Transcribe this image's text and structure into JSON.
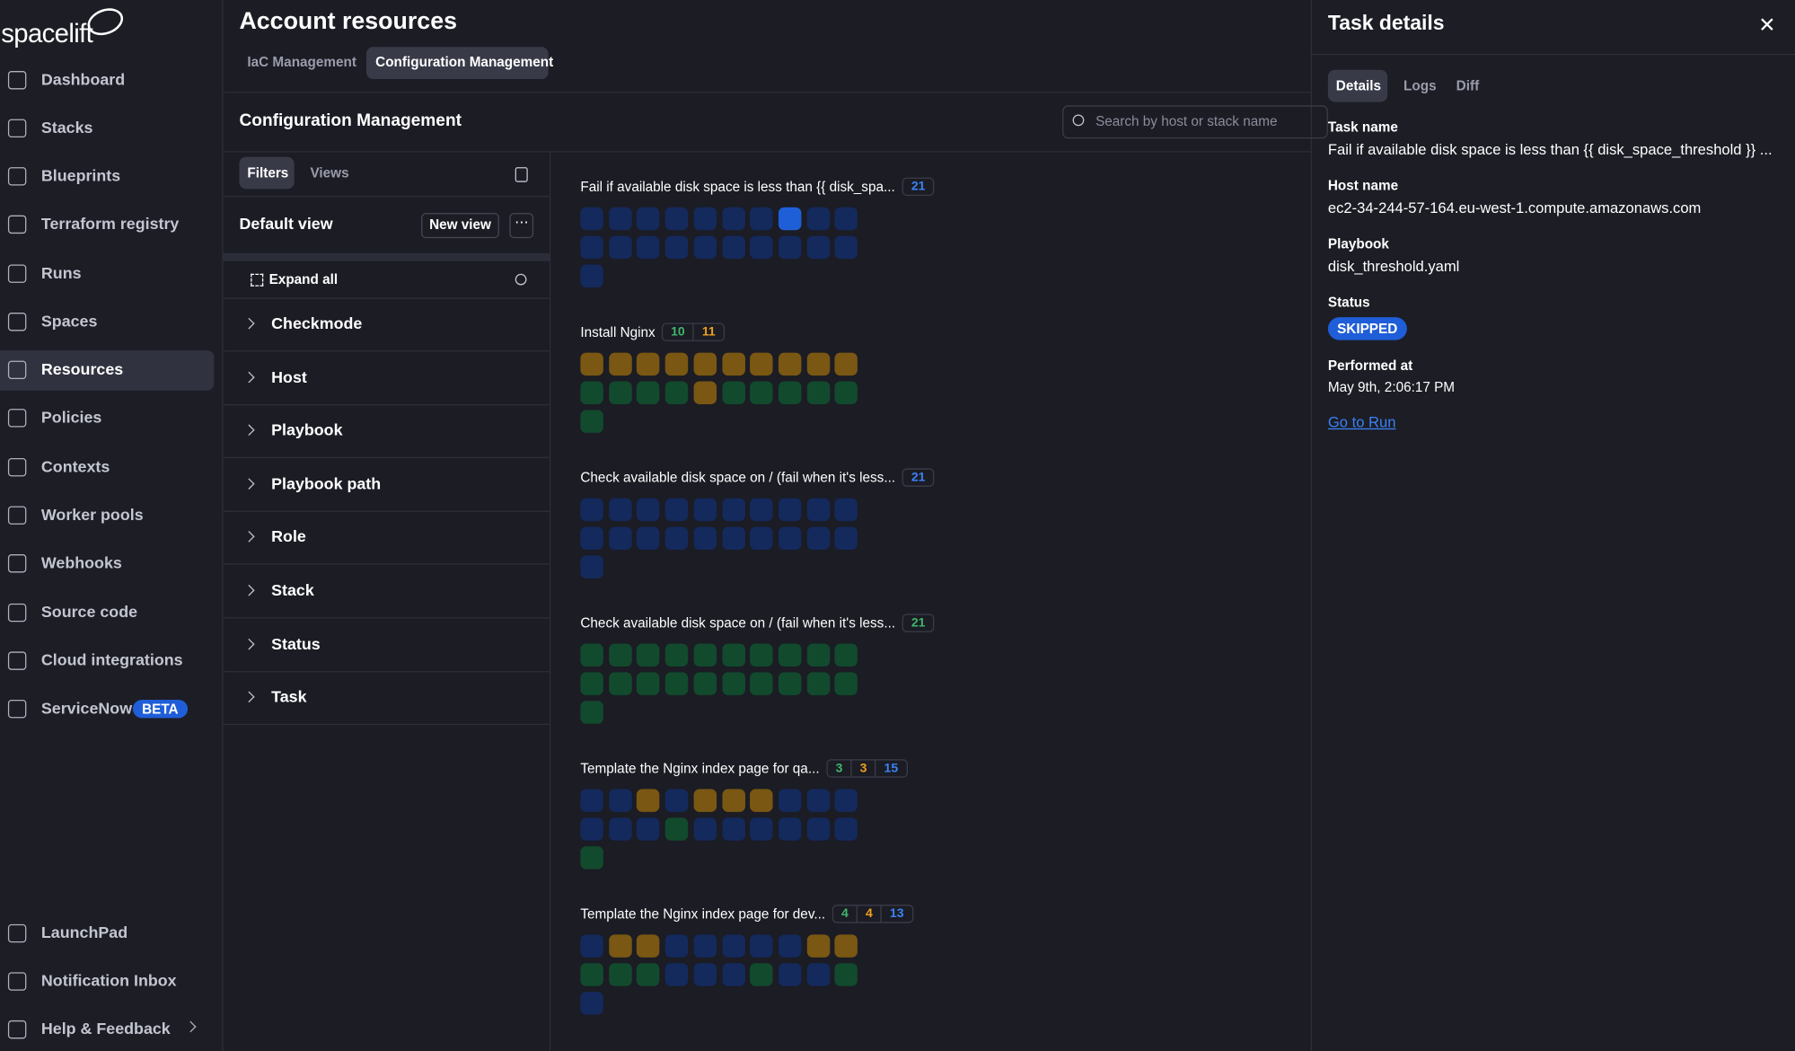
{
  "sidebar": {
    "logo": "spacelift",
    "nav": [
      "Dashboard",
      "Stacks",
      "Blueprints",
      "Terraform registry",
      "Runs",
      "Spaces",
      "Resources",
      "Policies",
      "Contexts",
      "Worker pools",
      "Webhooks",
      "Source code",
      "Cloud integrations",
      "ServiceNow"
    ],
    "beta": "BETA",
    "bottom": [
      "LaunchPad",
      "Notification Inbox",
      "Help & Feedback"
    ]
  },
  "header": {
    "title": "Account resources",
    "tabs": [
      "IaC Management",
      "Configuration Management"
    ]
  },
  "section": {
    "title": "Configuration Management",
    "search_placeholder": "Search by host or stack name"
  },
  "filters": {
    "tabs": [
      "Filters",
      "Views"
    ],
    "view": "Default view",
    "new_view": "New view",
    "expand_all": "Expand all",
    "rows": [
      "Checkmode",
      "Host",
      "Playbook",
      "Playbook path",
      "Role",
      "Stack",
      "Status",
      "Task"
    ]
  },
  "groups": [
    {
      "title": "Fail if available disk space is less than {{ disk_spa...",
      "counts": [
        21
      ]
    },
    {
      "title": "Install Nginx",
      "counts": [
        10,
        11
      ]
    },
    {
      "title": "Check available disk space on / (fail when it's less...",
      "counts": [
        21
      ]
    },
    {
      "title": "Check available disk space on / (fail when it's less...",
      "counts": [
        21
      ]
    },
    {
      "title": "Template the Nginx index page for qa...",
      "counts": [
        3,
        3,
        15
      ]
    },
    {
      "title": "Template the Nginx index page for dev...",
      "counts": [
        4,
        4,
        13
      ]
    }
  ],
  "task_details": {
    "title": "Task details",
    "tabs": [
      "Details",
      "Logs",
      "Diff"
    ],
    "fields": [
      {
        "label": "Task name",
        "value": "Fail if available disk space is less than {{ disk_space_threshold }} ..."
      },
      {
        "label": "Host name",
        "value": "ec2-34-244-57-164.eu-west-1.compute.amazonaws.com"
      },
      {
        "label": "Playbook",
        "value": "disk_threshold.yaml"
      },
      {
        "label": "Status",
        "value": "SKIPPED"
      },
      {
        "label": "Performed at",
        "value": "May 9th, 2:06:17 PM"
      }
    ],
    "link": "Go to Run"
  }
}
